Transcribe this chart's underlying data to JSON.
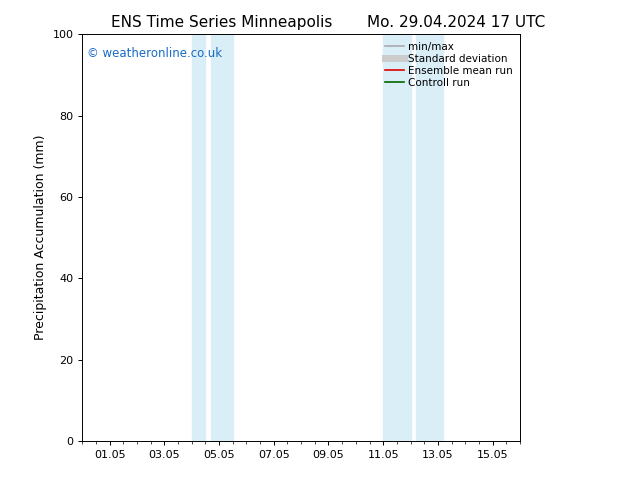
{
  "title_left": "ENS Time Series Minneapolis",
  "title_right": "Mo. 29.04.2024 17 UTC",
  "ylabel": "Precipitation Accumulation (mm)",
  "ylim": [
    0,
    100
  ],
  "yticks": [
    0,
    20,
    40,
    60,
    80,
    100
  ],
  "watermark": "© weatheronline.co.uk",
  "watermark_color": "#1a6bc4",
  "background_color": "#ffffff",
  "plot_bg_color": "#ffffff",
  "shaded_regions": [
    {
      "xstart": 4.0,
      "xend": 4.5,
      "color": "#daeef8"
    },
    {
      "xstart": 4.7,
      "xend": 5.5,
      "color": "#daeef8"
    },
    {
      "xstart": 11.0,
      "xend": 12.0,
      "color": "#daeef8"
    },
    {
      "xstart": 12.2,
      "xend": 13.2,
      "color": "#daeef8"
    }
  ],
  "legend_entries": [
    {
      "label": "min/max",
      "color": "#aaaaaa",
      "lw": 1.2,
      "linestyle": "-"
    },
    {
      "label": "Standard deviation",
      "color": "#cccccc",
      "lw": 5,
      "linestyle": "-"
    },
    {
      "label": "Ensemble mean run",
      "color": "#dd0000",
      "lw": 1.2,
      "linestyle": "-"
    },
    {
      "label": "Controll run",
      "color": "#006600",
      "lw": 1.2,
      "linestyle": "-"
    }
  ],
  "title_fontsize": 11,
  "axis_label_fontsize": 9,
  "tick_fontsize": 8,
  "legend_fontsize": 7.5,
  "x_tick_positions": [
    1,
    3,
    5,
    7,
    9,
    11,
    13,
    15
  ],
  "x_tick_labels": [
    "01.05",
    "03.05",
    "05.05",
    "07.05",
    "09.05",
    "11.05",
    "13.05",
    "15.05"
  ]
}
